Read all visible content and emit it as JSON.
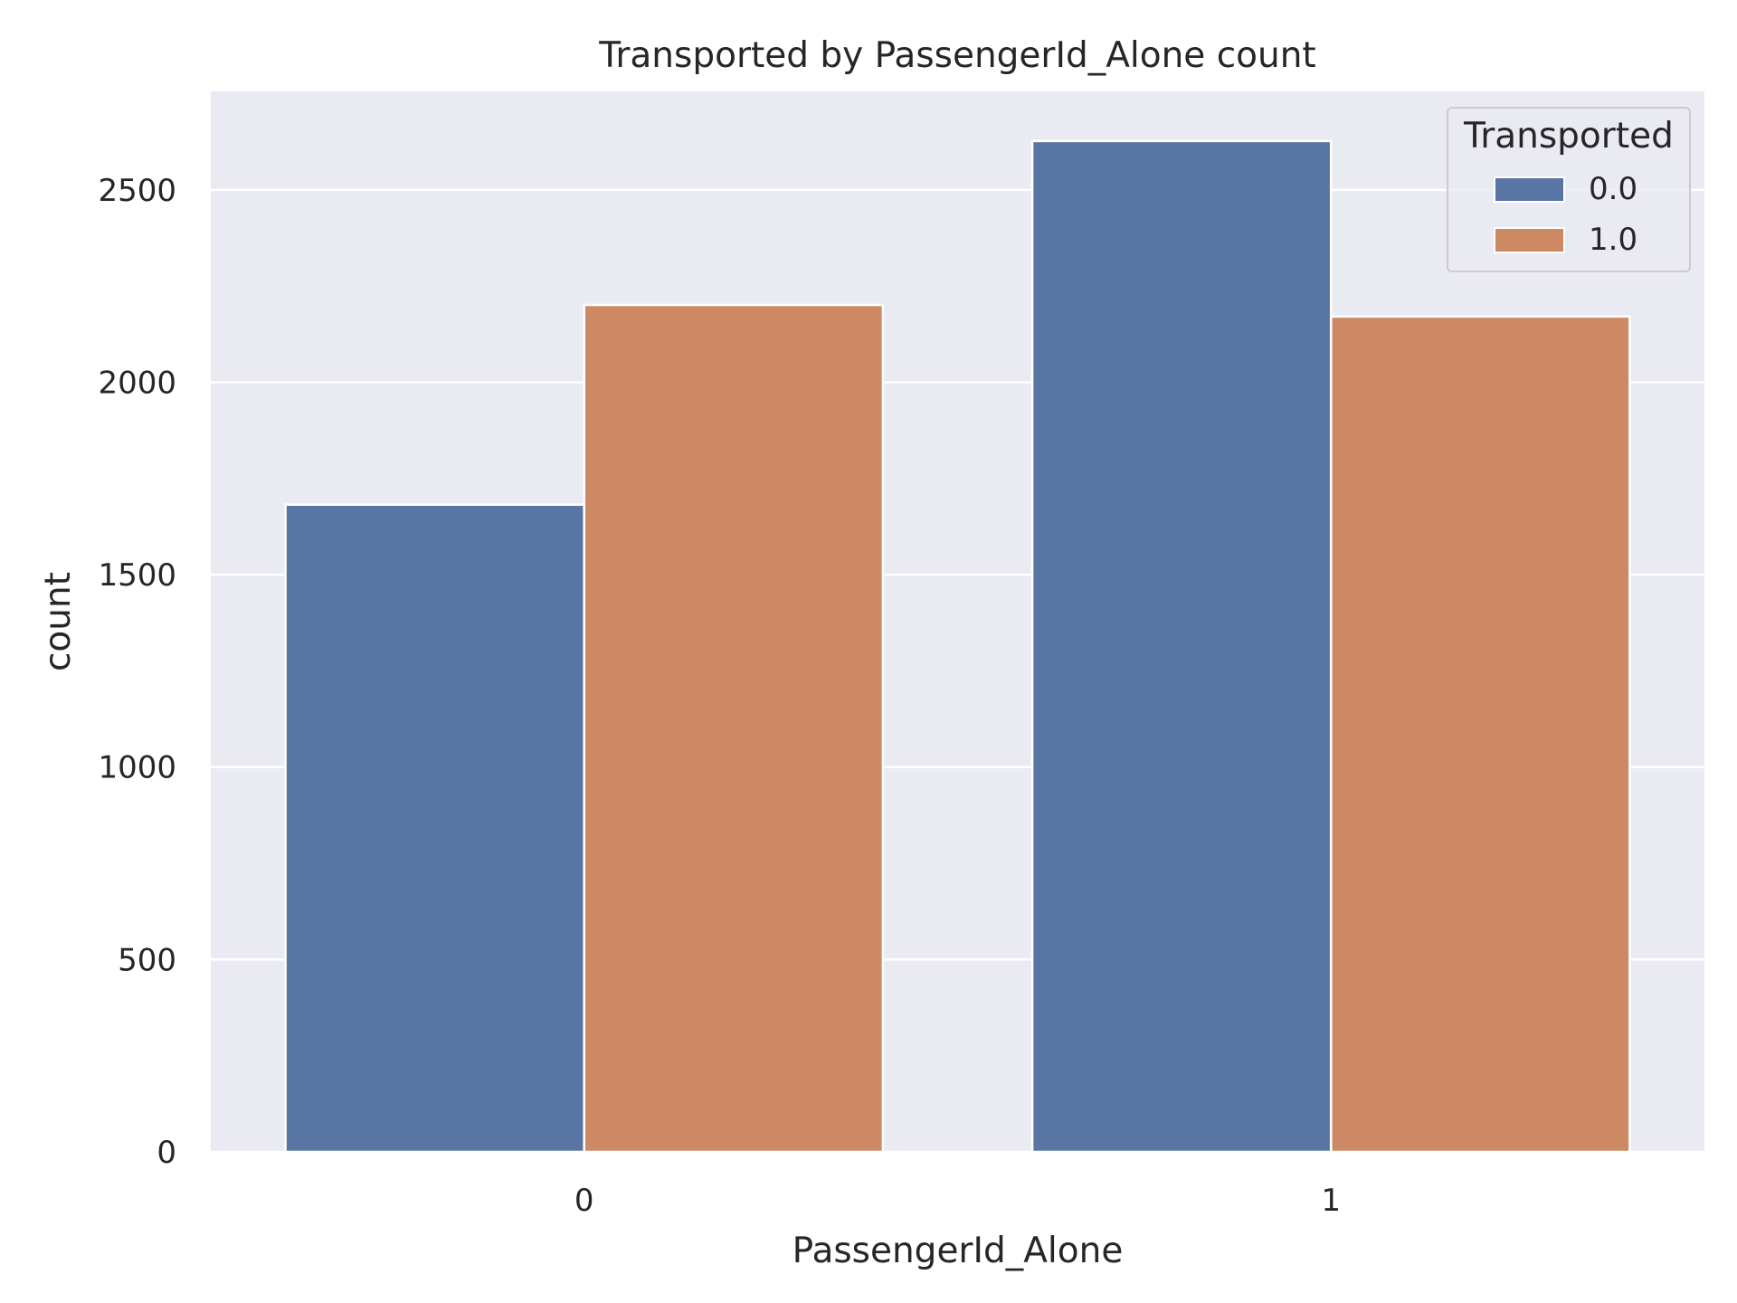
{
  "chart_data": {
    "type": "bar",
    "title": "Transported by PassengerId_Alone count",
    "xlabel": "PassengerId_Alone",
    "ylabel": "count",
    "categories": [
      "0",
      "1"
    ],
    "series": [
      {
        "name": "0.0",
        "values": [
          1682,
          2627
        ],
        "color": "#5975a4"
      },
      {
        "name": "1.0",
        "values": [
          2201,
          2171
        ],
        "color": "#cc8963"
      }
    ],
    "ylim": [
      0,
      2756
    ],
    "yticks": [
      0,
      500,
      1000,
      1500,
      2000,
      2500
    ],
    "legend": {
      "title": "Transported",
      "placement": "top-right"
    },
    "grid": true,
    "colors": {
      "axes_background": "#eaeaf2",
      "gridline": "#ffffff",
      "text": "#262626"
    }
  }
}
